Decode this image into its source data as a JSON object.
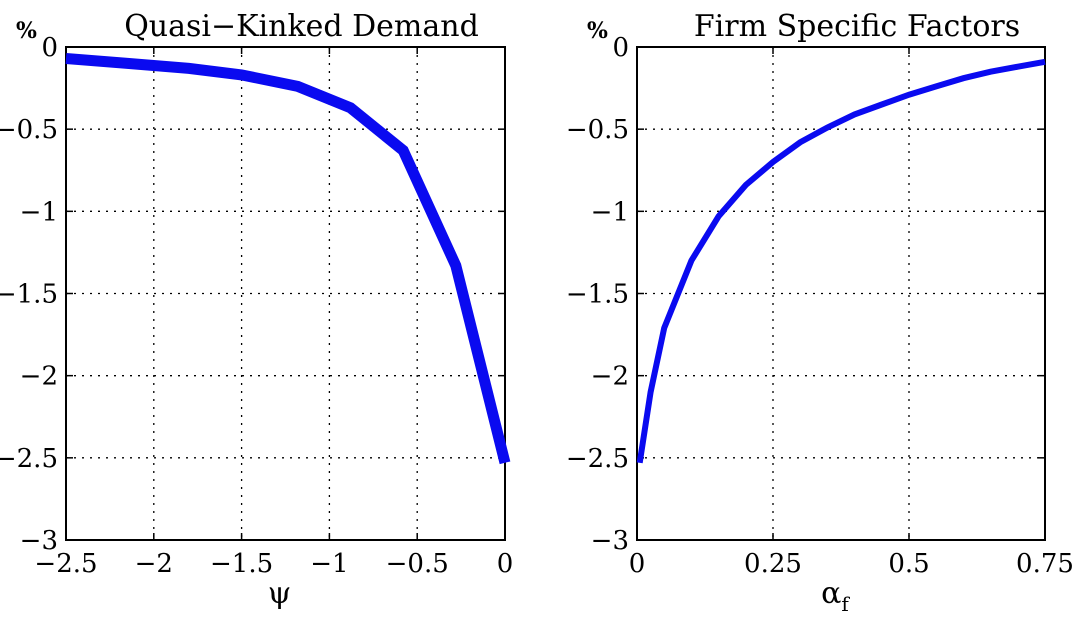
{
  "chart_data": [
    {
      "type": "line",
      "title": "Quasi−Kinked Demand",
      "unit_label": "%",
      "xlabel": "ψ",
      "xlabel_sub": "",
      "ylabel": "",
      "xlim": [
        -2.5,
        0
      ],
      "ylim": [
        -3,
        0
      ],
      "xticks": [
        -2.5,
        -2,
        -1.5,
        -1,
        -0.5,
        0
      ],
      "xtick_labels": [
        "−2.5",
        "−2",
        "−1.5",
        "−1",
        "−0.5",
        "0"
      ],
      "yticks": [
        0,
        -0.5,
        -1,
        -1.5,
        -2,
        -2.5,
        -3
      ],
      "ytick_labels": [
        "0",
        "−0.5",
        "−1",
        "−1.5",
        "−2",
        "−2.5",
        "−3"
      ],
      "grid": true,
      "color": "#0a0af0",
      "line_width": 11,
      "series": [
        {
          "x": [
            -2.5,
            -2.15,
            -1.8,
            -1.5,
            -1.18,
            -0.88,
            -0.58,
            -0.28,
            0
          ],
          "values": [
            -0.07,
            -0.1,
            -0.13,
            -0.17,
            -0.24,
            -0.37,
            -0.63,
            -1.33,
            -2.53
          ]
        }
      ]
    },
    {
      "type": "line",
      "title": "Firm Specific Factors",
      "unit_label": "%",
      "xlabel": "α",
      "xlabel_sub": "f",
      "ylabel": "",
      "xlim": [
        0,
        0.75
      ],
      "ylim": [
        -3,
        0
      ],
      "xticks": [
        0,
        0.25,
        0.5,
        0.75
      ],
      "xtick_labels": [
        "0",
        "0.25",
        "0.5",
        "0.75"
      ],
      "yticks": [
        0,
        -0.5,
        -1,
        -1.5,
        -2,
        -2.5,
        -3
      ],
      "ytick_labels": [
        "0",
        "−0.5",
        "−1",
        "−1.5",
        "−2",
        "−2.5",
        "−3"
      ],
      "grid": true,
      "color": "#0a0af0",
      "line_width": 6,
      "series": [
        {
          "x": [
            0.005,
            0.025,
            0.05,
            0.1,
            0.15,
            0.2,
            0.25,
            0.3,
            0.35,
            0.4,
            0.45,
            0.5,
            0.55,
            0.6,
            0.65,
            0.7,
            0.75
          ],
          "values": [
            -2.53,
            -2.1,
            -1.71,
            -1.3,
            -1.03,
            -0.84,
            -0.7,
            -0.58,
            -0.49,
            -0.41,
            -0.35,
            -0.29,
            -0.24,
            -0.19,
            -0.15,
            -0.12,
            -0.09
          ]
        }
      ]
    }
  ]
}
